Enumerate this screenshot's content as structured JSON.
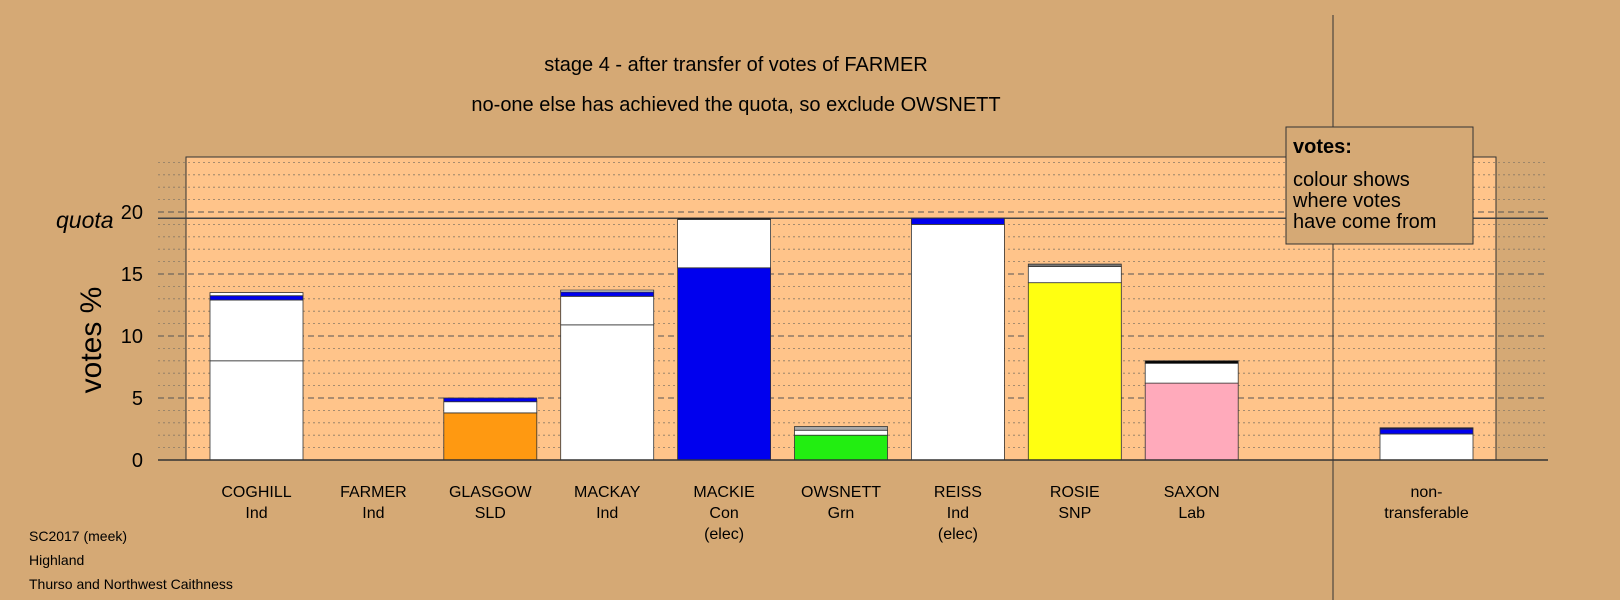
{
  "chart_data": {
    "type": "bar",
    "stacked": true,
    "title": "stage 4 - after transfer of votes of FARMER",
    "subtitle": "no-one else has achieved the quota, so exclude OWSNETT",
    "ylabel": "votes %",
    "quota_label": "quota",
    "quota_value": 19.5,
    "ylim": [
      0,
      24.5
    ],
    "yticks": [
      0,
      5,
      10,
      15,
      20
    ],
    "grid": "dashed major, dotted minor",
    "categories": [
      {
        "name": "COGHILL",
        "party": "Ind",
        "note": ""
      },
      {
        "name": "FARMER",
        "party": "Ind",
        "note": ""
      },
      {
        "name": "GLASGOW",
        "party": "SLD",
        "note": ""
      },
      {
        "name": "MACKAY",
        "party": "Ind",
        "note": ""
      },
      {
        "name": "MACKIE",
        "party": "Con",
        "note": "(elec)"
      },
      {
        "name": "OWSNETT",
        "party": "Grn",
        "note": ""
      },
      {
        "name": "REISS",
        "party": "Ind",
        "note": "(elec)"
      },
      {
        "name": "ROSIE",
        "party": "SNP",
        "note": ""
      },
      {
        "name": "SAXON",
        "party": "Lab",
        "note": ""
      }
    ],
    "non_transferable": {
      "label_line1": "non-",
      "label_line2": "transferable",
      "segments": [
        {
          "value": 2.1,
          "color": "#ffffff"
        },
        {
          "value": 0.4,
          "color": "#0000ee"
        },
        {
          "value": 0.1,
          "color": "#000080"
        }
      ]
    },
    "stacks": [
      [
        {
          "value": 8.0,
          "color": "#ffffff"
        },
        {
          "value": 4.9,
          "color": "#ffffff"
        },
        {
          "value": 0.35,
          "color": "#0000ee"
        },
        {
          "value": 0.25,
          "color": "#ffffff"
        }
      ],
      [],
      [
        {
          "value": 3.8,
          "color": "#ff9911"
        },
        {
          "value": 0.9,
          "color": "#ffffff"
        },
        {
          "value": 0.3,
          "color": "#0000ee"
        }
      ],
      [
        {
          "value": 10.9,
          "color": "#ffffff"
        },
        {
          "value": 2.3,
          "color": "#ffffff"
        },
        {
          "value": 0.35,
          "color": "#0000ee"
        },
        {
          "value": 0.15,
          "color": "#ffffff"
        }
      ],
      [
        {
          "value": 15.5,
          "color": "#0000ee"
        },
        {
          "value": 3.9,
          "color": "#ffffff"
        },
        {
          "value": 0.1,
          "color": "#000000"
        }
      ],
      [
        {
          "value": 2.0,
          "color": "#22ee11"
        },
        {
          "value": 0.4,
          "color": "#ffffff"
        },
        {
          "value": 0.3,
          "color": "#aaaaaa"
        }
      ],
      [
        {
          "value": 19.0,
          "color": "#ffffff"
        },
        {
          "value": 0.5,
          "color": "#0000ee"
        }
      ],
      [
        {
          "value": 14.3,
          "color": "#ffff11"
        },
        {
          "value": 1.3,
          "color": "#ffffff"
        },
        {
          "value": 0.2,
          "color": "#777777"
        }
      ],
      [
        {
          "value": 6.2,
          "color": "#ffaabb"
        },
        {
          "value": 1.6,
          "color": "#ffffff"
        },
        {
          "value": 0.2,
          "color": "#000000"
        }
      ]
    ]
  },
  "legend": {
    "heading": "votes:",
    "lines": [
      "colour shows",
      "where votes",
      "have come from"
    ]
  },
  "footer": {
    "line1": "SC2017 (meek)",
    "line2": "Highland",
    "line3": "Thurso and Northwest Caithness"
  },
  "colors": {
    "background": "#d5a975",
    "plot_background": "#ffc48a",
    "legend_background": "#d5a975"
  }
}
